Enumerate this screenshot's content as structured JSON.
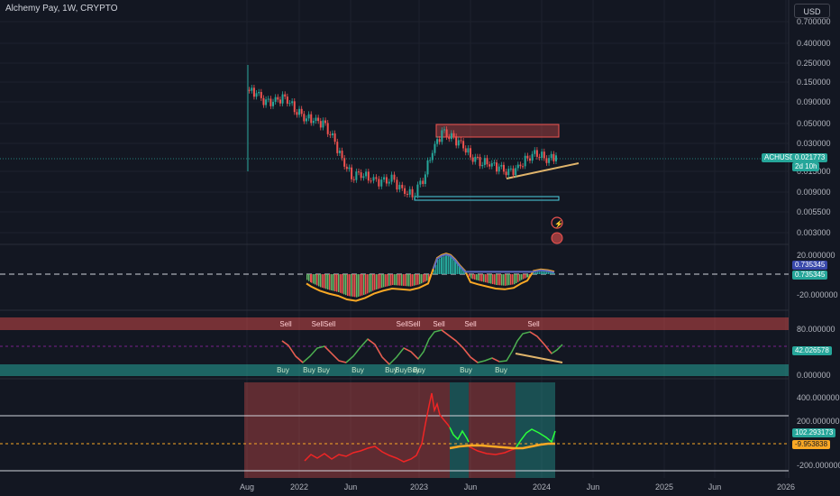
{
  "header": {
    "symbol_title": "Alchemy Pay, 1W, CRYPTO",
    "currency_button": "USD"
  },
  "colors": {
    "background": "#131722",
    "up": "#26a69a",
    "down": "#ef5350",
    "grid": "#1e222d",
    "text": "#b2b5be"
  },
  "price_badges": {
    "symbol": "ACHUSD",
    "last_price": "0.021773",
    "countdown": "2d 10h"
  },
  "macd_badges": {
    "value_a": "0.735345",
    "value_b": "0.735345"
  },
  "osc_badges": {
    "value": "42.026578"
  },
  "lower_badges": {
    "value_a": "102.293173",
    "value_b": "-9.953838"
  },
  "chart_data": [
    {
      "type": "candlestick",
      "scale": "log",
      "y_ticks": [
        "0.700000",
        "0.400000",
        "0.250000",
        "0.150000",
        "0.090000",
        "0.050000",
        "0.030000",
        "0.015000",
        "0.009000",
        "0.005500",
        "0.003000"
      ],
      "ylim": [
        0.0025,
        0.8
      ],
      "x_ticks": [
        "Aug",
        "2022",
        "Jun",
        "2023",
        "Jun",
        "2024",
        "Jun",
        "2025",
        "Jun",
        "2026"
      ],
      "close_series": [
        {
          "date": "2021-08-01",
          "close": 0.12
        },
        {
          "date": "2021-08-29",
          "close": 0.11
        },
        {
          "date": "2021-09-26",
          "close": 0.085
        },
        {
          "date": "2021-10-24",
          "close": 0.09
        },
        {
          "date": "2021-11-21",
          "close": 0.1
        },
        {
          "date": "2021-12-19",
          "close": 0.075
        },
        {
          "date": "2022-01-16",
          "close": 0.06
        },
        {
          "date": "2022-02-13",
          "close": 0.055
        },
        {
          "date": "2022-03-13",
          "close": 0.05
        },
        {
          "date": "2022-04-10",
          "close": 0.035
        },
        {
          "date": "2022-05-08",
          "close": 0.02
        },
        {
          "date": "2022-06-05",
          "close": 0.013
        },
        {
          "date": "2022-07-03",
          "close": 0.014
        },
        {
          "date": "2022-08-01",
          "close": 0.012
        },
        {
          "date": "2022-09-01",
          "close": 0.011
        },
        {
          "date": "2022-10-01",
          "close": 0.012
        },
        {
          "date": "2022-11-01",
          "close": 0.009
        },
        {
          "date": "2022-12-01",
          "close": 0.008
        },
        {
          "date": "2023-01-01",
          "close": 0.012
        },
        {
          "date": "2023-01-29",
          "close": 0.025
        },
        {
          "date": "2023-02-26",
          "close": 0.04
        },
        {
          "date": "2023-03-26",
          "close": 0.035
        },
        {
          "date": "2023-04-23",
          "close": 0.03
        },
        {
          "date": "2023-05-21",
          "close": 0.022
        },
        {
          "date": "2023-06-18",
          "close": 0.019
        },
        {
          "date": "2023-07-16",
          "close": 0.018
        },
        {
          "date": "2023-08-13",
          "close": 0.016
        },
        {
          "date": "2023-09-10",
          "close": 0.014
        },
        {
          "date": "2023-10-08",
          "close": 0.016
        },
        {
          "date": "2023-11-05",
          "close": 0.021
        },
        {
          "date": "2023-12-03",
          "close": 0.024
        },
        {
          "date": "2023-12-31",
          "close": 0.02
        },
        {
          "date": "2024-01-28",
          "close": 0.021773
        }
      ]
    },
    {
      "type": "histogram",
      "y_ticks": [
        "20.000000",
        "-20.000000"
      ]
    },
    {
      "type": "line",
      "y_ticks": [
        "80.000000",
        "0.000000"
      ],
      "signals_sell": [
        "Sell",
        "SellSell",
        "SellSell",
        "Sell",
        "Sell",
        "Sell"
      ],
      "signals_buy": [
        "Buy",
        "Buy",
        "Buy",
        "Buy",
        "Buy",
        "BuyBuy",
        "Buy",
        "Buy",
        "Buy"
      ]
    },
    {
      "type": "line",
      "y_ticks": [
        "400.000000",
        "200.000000",
        "-200.000000"
      ]
    }
  ]
}
